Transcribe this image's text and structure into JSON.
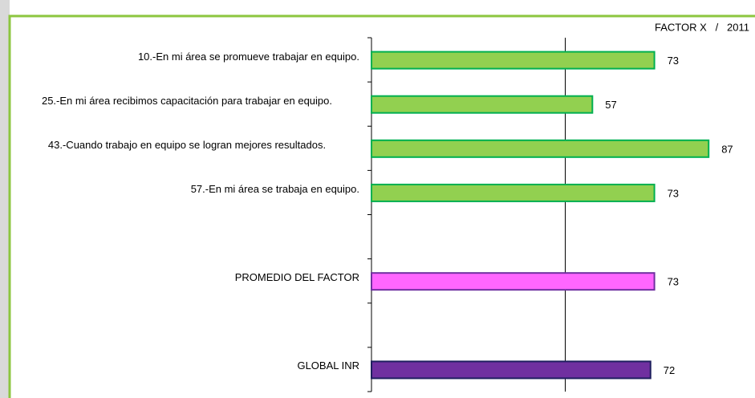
{
  "chart_data": {
    "type": "barh",
    "title": "FACTOR X   /   2011",
    "categories": [
      "10.-En mi área se promueve trabajar en equipo.",
      "25.-En mi área recibimos capacitación para trabajar en equipo.",
      "43.-Cuando trabajo en equipo se logran mejores resultados.",
      "57.-En mi área se trabaja en equipo.",
      null,
      "PROMEDIO DEL FACTOR",
      null,
      "GLOBAL INR"
    ],
    "values": [
      73,
      57,
      87,
      73,
      null,
      73,
      null,
      72
    ],
    "colors": [
      "#92d050",
      "#92d050",
      "#92d050",
      "#92d050",
      null,
      "#ff66ff",
      null,
      "#7030a0"
    ],
    "edge_colors": [
      "#00b050",
      "#00b050",
      "#00b050",
      "#00b050",
      null,
      "#7030a0",
      null,
      "#1f1f5f"
    ],
    "xlim": [
      0,
      100
    ],
    "xticks": [
      50
    ],
    "grid": true
  }
}
